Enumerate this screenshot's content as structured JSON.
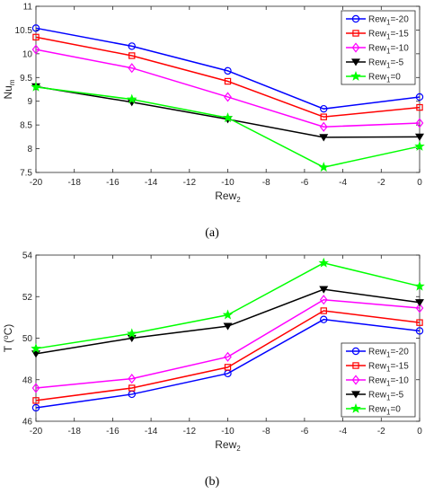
{
  "chart_data": [
    {
      "type": "line",
      "caption": "(a)",
      "xlabel": "Rew",
      "xlabel_sub": "2",
      "ylabel": "Nu",
      "ylabel_sub": "m",
      "x": [
        -20,
        -15,
        -10,
        -5,
        0
      ],
      "xlim": [
        -20,
        0
      ],
      "ylim": [
        7.5,
        11
      ],
      "xticks": [
        -20,
        -18,
        -16,
        -14,
        -12,
        -10,
        -8,
        -6,
        -4,
        -2,
        0
      ],
      "yticks": [
        7.5,
        8,
        8.5,
        9,
        9.5,
        10,
        10.5,
        11
      ],
      "grid": false,
      "legend_position": "top-right",
      "series": [
        {
          "name": "Rew",
          "name_sub": "1",
          "name_suffix": "=-20",
          "color": "#0000ff",
          "marker": "circle",
          "values": [
            10.54,
            10.16,
            9.64,
            8.84,
            9.09
          ]
        },
        {
          "name": "Rew",
          "name_sub": "1",
          "name_suffix": "=-15",
          "color": "#ff0000",
          "marker": "square",
          "values": [
            10.35,
            9.96,
            9.42,
            8.67,
            8.87
          ]
        },
        {
          "name": "Rew",
          "name_sub": "1",
          "name_suffix": "=-10",
          "color": "#ff00ff",
          "marker": "diamond",
          "values": [
            10.09,
            9.7,
            9.09,
            8.46,
            8.54
          ]
        },
        {
          "name": "Rew",
          "name_sub": "1",
          "name_suffix": "=-5",
          "color": "#000000",
          "marker": "triangle-down",
          "values": [
            9.31,
            8.98,
            8.62,
            8.24,
            8.25
          ]
        },
        {
          "name": "Rew",
          "name_sub": "1",
          "name_suffix": "=0",
          "color": "#00ff00",
          "marker": "star",
          "values": [
            9.3,
            9.04,
            8.65,
            7.61,
            8.05
          ]
        }
      ]
    },
    {
      "type": "line",
      "caption": "(b)",
      "xlabel": "Rew",
      "xlabel_sub": "2",
      "ylabel": "T (",
      "ylabel_sup": "o",
      "ylabel_suffix": "C)",
      "x": [
        -20,
        -15,
        -10,
        -5,
        0
      ],
      "xlim": [
        -20,
        0
      ],
      "ylim": [
        46,
        54
      ],
      "xticks": [
        -20,
        -18,
        -16,
        -14,
        -12,
        -10,
        -8,
        -6,
        -4,
        -2,
        0
      ],
      "yticks": [
        46,
        48,
        50,
        52,
        54
      ],
      "grid": false,
      "legend_position": "bottom-right",
      "series": [
        {
          "name": "Rew",
          "name_sub": "1",
          "name_suffix": "=-20",
          "color": "#0000ff",
          "marker": "circle",
          "values": [
            46.65,
            47.3,
            48.3,
            50.9,
            50.35
          ]
        },
        {
          "name": "Rew",
          "name_sub": "1",
          "name_suffix": "=-15",
          "color": "#ff0000",
          "marker": "square",
          "values": [
            47.0,
            47.6,
            48.6,
            51.32,
            50.75
          ]
        },
        {
          "name": "Rew",
          "name_sub": "1",
          "name_suffix": "=-10",
          "color": "#ff00ff",
          "marker": "diamond",
          "values": [
            47.6,
            48.05,
            49.1,
            51.85,
            51.45
          ]
        },
        {
          "name": "Rew",
          "name_sub": "1",
          "name_suffix": "=-5",
          "color": "#000000",
          "marker": "triangle-down",
          "values": [
            49.25,
            50.0,
            50.58,
            52.35,
            51.72
          ]
        },
        {
          "name": "Rew",
          "name_sub": "1",
          "name_suffix": "=0",
          "color": "#00ff00",
          "marker": "star",
          "values": [
            49.5,
            50.22,
            51.12,
            53.62,
            52.5
          ]
        }
      ]
    }
  ]
}
